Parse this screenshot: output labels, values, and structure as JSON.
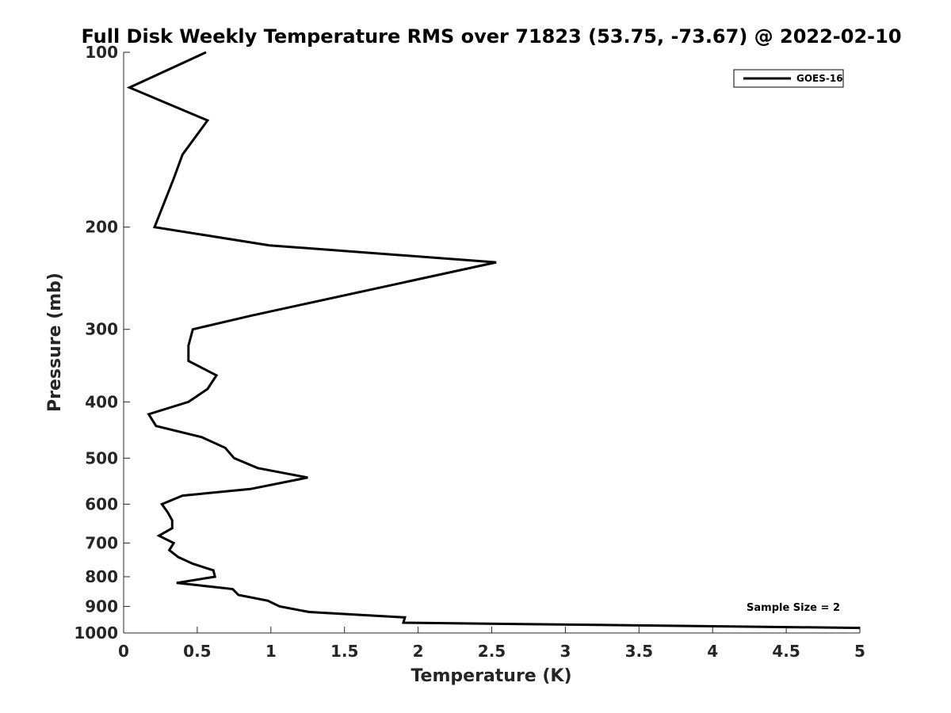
{
  "chart_data": {
    "type": "line",
    "title": "Full Disk Weekly Temperature RMS over 71823 (53.75, -73.67) @ 2022-02-10",
    "xlabel": "Temperature (K)",
    "ylabel": "Pressure (mb)",
    "xlim": [
      0,
      5
    ],
    "ylim": [
      100,
      1000
    ],
    "y_scale": "log",
    "y_reversed": true,
    "grid": false,
    "legend_position": "top-right",
    "x_ticks": [
      "0",
      "0.5",
      "1",
      "1.5",
      "2",
      "2.5",
      "3",
      "3.5",
      "4",
      "4.5",
      "5"
    ],
    "y_ticks": [
      "100",
      "200",
      "300",
      "400",
      "500",
      "600",
      "700",
      "800",
      "900",
      "1000"
    ],
    "series": [
      {
        "name": "GOES-16",
        "color": "#000000",
        "points": [
          [
            0.56,
            100
          ],
          [
            0.04,
            115
          ],
          [
            0.57,
            131
          ],
          [
            0.4,
            150
          ],
          [
            0.34,
            165
          ],
          [
            0.21,
            200
          ],
          [
            0.99,
            215
          ],
          [
            2.53,
            230
          ],
          [
            0.87,
            284
          ],
          [
            0.47,
            300
          ],
          [
            0.44,
            320
          ],
          [
            0.44,
            340
          ],
          [
            0.63,
            360
          ],
          [
            0.57,
            380
          ],
          [
            0.44,
            400
          ],
          [
            0.17,
            420
          ],
          [
            0.22,
            440
          ],
          [
            0.53,
            460
          ],
          [
            0.69,
            480
          ],
          [
            0.75,
            500
          ],
          [
            0.91,
            520
          ],
          [
            1.25,
            540
          ],
          [
            0.86,
            565
          ],
          [
            0.4,
            580
          ],
          [
            0.26,
            600
          ],
          [
            0.3,
            620
          ],
          [
            0.33,
            640
          ],
          [
            0.33,
            660
          ],
          [
            0.24,
            680
          ],
          [
            0.34,
            700
          ],
          [
            0.31,
            720
          ],
          [
            0.37,
            740
          ],
          [
            0.47,
            760
          ],
          [
            0.61,
            780
          ],
          [
            0.62,
            800
          ],
          [
            0.36,
            820
          ],
          [
            0.74,
            840
          ],
          [
            0.78,
            860
          ],
          [
            0.98,
            880
          ],
          [
            1.06,
            900
          ],
          [
            1.26,
            920
          ],
          [
            1.91,
            940
          ],
          [
            1.9,
            960
          ],
          [
            5.0,
            980
          ]
        ]
      }
    ],
    "annotations": [
      "Sample Size = 2"
    ]
  }
}
